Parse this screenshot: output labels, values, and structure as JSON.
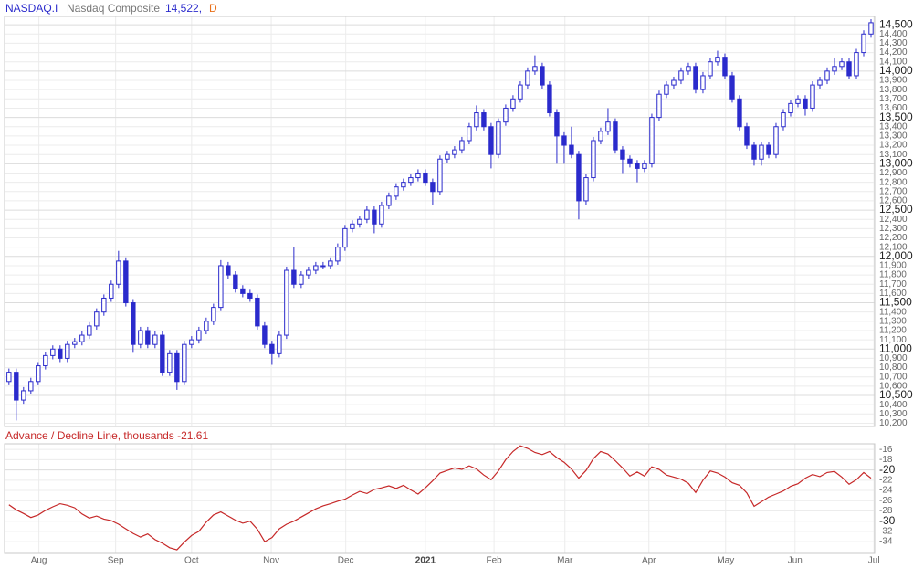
{
  "header": {
    "symbol": "NASDAQ.I",
    "name": "Nasdaq Composite",
    "last": "14,522,",
    "interval": "D"
  },
  "chart_data": [
    {
      "type": "candlestick",
      "color": "#2b2bcc",
      "grid": true,
      "xlim": [
        -0.6,
        118.5
      ],
      "ylim": [
        10165,
        14590
      ],
      "yticks": [
        {
          "value": 10200,
          "label": "10,200"
        },
        {
          "value": 10300,
          "label": "10,300"
        },
        {
          "value": 10400,
          "label": "10,400"
        },
        {
          "value": 10500,
          "label": "10,500"
        },
        {
          "value": 10600,
          "label": "10,600"
        },
        {
          "value": 10700,
          "label": "10,700"
        },
        {
          "value": 10800,
          "label": "10,800"
        },
        {
          "value": 10900,
          "label": "10,900"
        },
        {
          "value": 11000,
          "label": "11,000"
        },
        {
          "value": 11100,
          "label": "11,100"
        },
        {
          "value": 11200,
          "label": "11,200"
        },
        {
          "value": 11300,
          "label": "11,300"
        },
        {
          "value": 11400,
          "label": "11,400"
        },
        {
          "value": 11500,
          "label": "11,500"
        },
        {
          "value": 11600,
          "label": "11,600"
        },
        {
          "value": 11700,
          "label": "11,700"
        },
        {
          "value": 11800,
          "label": "11,800"
        },
        {
          "value": 11900,
          "label": "11,900"
        },
        {
          "value": 12000,
          "label": "12,000"
        },
        {
          "value": 12100,
          "label": "12,100"
        },
        {
          "value": 12200,
          "label": "12,200"
        },
        {
          "value": 12300,
          "label": "12,300"
        },
        {
          "value": 12400,
          "label": "12,400"
        },
        {
          "value": 12500,
          "label": "12,500"
        },
        {
          "value": 12600,
          "label": "12,600"
        },
        {
          "value": 12700,
          "label": "12,700"
        },
        {
          "value": 12800,
          "label": "12,800"
        },
        {
          "value": 12900,
          "label": "12,900"
        },
        {
          "value": 13000,
          "label": "13,000"
        },
        {
          "value": 13100,
          "label": "13,100"
        },
        {
          "value": 13200,
          "label": "13,200"
        },
        {
          "value": 13300,
          "label": "13,300"
        },
        {
          "value": 13400,
          "label": "13,400"
        },
        {
          "value": 13500,
          "label": "13,500"
        },
        {
          "value": 13600,
          "label": "13,600"
        },
        {
          "value": 13700,
          "label": "13,700"
        },
        {
          "value": 13800,
          "label": "13,800"
        },
        {
          "value": 13900,
          "label": "13,900"
        },
        {
          "value": 14000,
          "label": "14,000"
        },
        {
          "value": 14100,
          "label": "14,100"
        },
        {
          "value": 14200,
          "label": "14,200"
        },
        {
          "value": 14300,
          "label": "14,300"
        },
        {
          "value": 14400,
          "label": "14,400"
        },
        {
          "value": 14500,
          "label": "14,500"
        }
      ],
      "open": [
        10650,
        10750,
        10450,
        10550,
        10650,
        10820,
        10930,
        11000,
        10900,
        11050,
        11080,
        11150,
        11250,
        11400,
        11550,
        11700,
        11950,
        11500,
        11050,
        11200,
        11050,
        11150,
        10750,
        10950,
        10650,
        11050,
        11100,
        11200,
        11300,
        11450,
        11900,
        11800,
        11650,
        11600,
        11550,
        11250,
        11050,
        10950,
        11150,
        11850,
        11700,
        11800,
        11850,
        11900,
        11900,
        11950,
        12100,
        12300,
        12350,
        12400,
        12500,
        12350,
        12550,
        12650,
        12750,
        12800,
        12850,
        12900,
        12800,
        12700,
        13050,
        13100,
        13150,
        13250,
        13400,
        13550,
        13400,
        13100,
        13450,
        13600,
        13700,
        13850,
        14000,
        14050,
        13850,
        13550,
        13300,
        13200,
        13100,
        12600,
        12850,
        13250,
        13350,
        13450,
        13150,
        13050,
        13000,
        12950,
        13000,
        13500,
        13750,
        13850,
        13900,
        14000,
        14050,
        13800,
        13950,
        14100,
        14150,
        13950,
        13700,
        13400,
        13200,
        13050,
        13200,
        13100,
        13400,
        13550,
        13650,
        13700,
        13600,
        13850,
        13900,
        14000,
        14050,
        14100,
        13950,
        14200,
        14400
      ],
      "high": [
        10790,
        10790,
        10590,
        10690,
        10860,
        10970,
        11040,
        11040,
        11090,
        11120,
        11190,
        11290,
        11440,
        11590,
        11740,
        12060,
        11990,
        11540,
        11240,
        11240,
        11190,
        11190,
        10990,
        10990,
        11090,
        11140,
        11240,
        11340,
        11490,
        11960,
        11940,
        11840,
        11690,
        11640,
        11590,
        11290,
        11090,
        11190,
        11890,
        12100,
        11840,
        11890,
        11940,
        11940,
        11990,
        12140,
        12340,
        12390,
        12440,
        12540,
        12540,
        12590,
        12690,
        12790,
        12840,
        12890,
        12940,
        12940,
        12840,
        13090,
        13140,
        13190,
        13290,
        13440,
        13630,
        13590,
        13440,
        13490,
        13640,
        13740,
        13890,
        14040,
        14170,
        14090,
        13890,
        13590,
        13340,
        13400,
        13140,
        12890,
        13290,
        13390,
        13600,
        13490,
        13190,
        13090,
        13040,
        13040,
        13540,
        13790,
        13890,
        13940,
        14040,
        14090,
        14090,
        13990,
        14140,
        14220,
        14190,
        13990,
        13740,
        13440,
        13240,
        13240,
        13240,
        13440,
        13590,
        13690,
        13740,
        13740,
        13890,
        13940,
        14040,
        14140,
        14140,
        14140,
        14240,
        14440,
        14560
      ],
      "low": [
        10610,
        10230,
        10410,
        10510,
        10610,
        10780,
        10890,
        10860,
        10860,
        11010,
        11040,
        11110,
        11210,
        11360,
        11510,
        11660,
        11460,
        10960,
        11010,
        11010,
        11010,
        10710,
        10710,
        10560,
        10610,
        11010,
        11060,
        11160,
        11260,
        11410,
        11760,
        11610,
        11560,
        11510,
        11210,
        11010,
        10830,
        10910,
        11110,
        11660,
        11660,
        11760,
        11810,
        11860,
        11860,
        11910,
        12060,
        12260,
        12310,
        12360,
        12250,
        12310,
        12510,
        12610,
        12710,
        12760,
        12810,
        12760,
        12560,
        12660,
        13010,
        13060,
        13110,
        13210,
        13360,
        13360,
        12950,
        13060,
        13410,
        13560,
        13660,
        13810,
        13960,
        13810,
        13510,
        13000,
        13000,
        13060,
        12400,
        12560,
        12810,
        13210,
        13310,
        13110,
        12900,
        12960,
        12800,
        12910,
        12960,
        13460,
        13710,
        13810,
        13860,
        13960,
        13760,
        13760,
        13910,
        14060,
        13910,
        13660,
        13360,
        13160,
        12980,
        12980,
        13060,
        13060,
        13360,
        13510,
        13610,
        13520,
        13560,
        13810,
        13860,
        13960,
        14010,
        13910,
        13910,
        14160,
        14360
      ],
      "close": [
        10750,
        10450,
        10550,
        10650,
        10820,
        10930,
        11000,
        10900,
        11050,
        11080,
        11150,
        11250,
        11400,
        11550,
        11700,
        11950,
        11500,
        11050,
        11200,
        11050,
        11150,
        10750,
        10950,
        10650,
        11050,
        11100,
        11200,
        11300,
        11450,
        11900,
        11800,
        11650,
        11600,
        11550,
        11250,
        11050,
        10950,
        11150,
        11850,
        11700,
        11800,
        11850,
        11900,
        11900,
        11950,
        12100,
        12300,
        12350,
        12400,
        12500,
        12350,
        12550,
        12650,
        12750,
        12800,
        12850,
        12900,
        12800,
        12700,
        13050,
        13100,
        13150,
        13250,
        13400,
        13550,
        13400,
        13100,
        13450,
        13600,
        13700,
        13850,
        14000,
        14050,
        13850,
        13550,
        13300,
        13200,
        13100,
        12600,
        12850,
        13250,
        13350,
        13450,
        13150,
        13050,
        13000,
        12950,
        13000,
        13500,
        13750,
        13850,
        13900,
        14000,
        14050,
        13800,
        13950,
        14100,
        14150,
        13950,
        13700,
        13400,
        13200,
        13050,
        13200,
        13100,
        13400,
        13550,
        13650,
        13700,
        13600,
        13850,
        13900,
        14000,
        14050,
        14100,
        13950,
        14200,
        14400,
        14522
      ]
    },
    {
      "type": "line",
      "title": "Advance / Decline Line, thousands -21.61",
      "grid": true,
      "xlim": [
        -0.6,
        118.5
      ],
      "ylim": [
        -36.3,
        -14.9
      ],
      "yticks": [
        -16,
        -18,
        -20,
        -22,
        -24,
        -26,
        -28,
        -30,
        -32,
        -34
      ],
      "xticks": [
        {
          "value": 4.1,
          "label": "Aug"
        },
        {
          "value": 14.6,
          "label": "Sep"
        },
        {
          "value": 25,
          "label": "Oct"
        },
        {
          "value": 35.9,
          "label": "Nov"
        },
        {
          "value": 46.1,
          "label": "Dec"
        },
        {
          "value": 57,
          "label": "2021"
        },
        {
          "value": 66.4,
          "label": "Feb"
        },
        {
          "value": 76.1,
          "label": "Mar"
        },
        {
          "value": 87.6,
          "label": "Apr"
        },
        {
          "value": 98.1,
          "label": "May"
        },
        {
          "value": 107.6,
          "label": "Jun"
        },
        {
          "value": 118.4,
          "label": "Jul"
        }
      ],
      "series": [
        {
          "color": "#c62828",
          "values": [
            -26.8,
            -27.8,
            -28.5,
            -29.3,
            -28.8,
            -27.9,
            -27.2,
            -26.6,
            -26.9,
            -27.4,
            -28.6,
            -29.4,
            -29.0,
            -29.6,
            -29.9,
            -30.6,
            -31.5,
            -32.4,
            -33.1,
            -32.5,
            -33.6,
            -34.3,
            -35.2,
            -35.6,
            -34.1,
            -32.8,
            -32.0,
            -30.2,
            -28.8,
            -28.2,
            -29.0,
            -29.8,
            -30.4,
            -30.0,
            -31.6,
            -34.0,
            -33.2,
            -31.5,
            -30.6,
            -30.0,
            -29.2,
            -28.4,
            -27.6,
            -27.0,
            -26.6,
            -26.1,
            -25.7,
            -24.9,
            -24.2,
            -24.6,
            -23.8,
            -23.5,
            -23.1,
            -23.6,
            -23.0,
            -23.9,
            -24.7,
            -23.5,
            -22.1,
            -20.6,
            -20.1,
            -19.6,
            -19.9,
            -19.2,
            -19.8,
            -21.0,
            -21.9,
            -20.2,
            -18.0,
            -16.4,
            -15.3,
            -15.8,
            -16.6,
            -17.0,
            -16.4,
            -17.6,
            -18.5,
            -19.8,
            -21.6,
            -20.1,
            -17.8,
            -16.4,
            -16.9,
            -18.2,
            -19.6,
            -21.2,
            -20.4,
            -21.2,
            -19.4,
            -19.9,
            -21.0,
            -21.4,
            -21.8,
            -22.6,
            -24.4,
            -22.0,
            -20.2,
            -20.6,
            -21.4,
            -22.5,
            -23.0,
            -24.5,
            -27.1,
            -26.2,
            -25.3,
            -24.7,
            -24.1,
            -23.2,
            -22.7,
            -21.6,
            -20.9,
            -21.3,
            -20.5,
            -20.3,
            -21.4,
            -22.8,
            -21.9,
            -20.5,
            -21.61
          ]
        }
      ]
    }
  ]
}
